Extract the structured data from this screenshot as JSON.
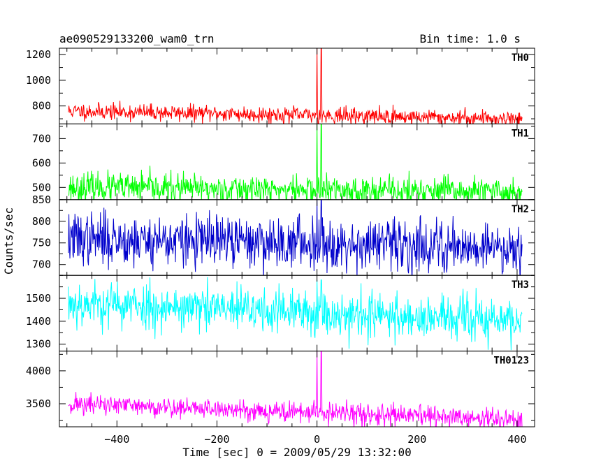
{
  "header": {
    "title": "ae090529133200_wam0_trn",
    "bin_time": "Bin time: 1.0 s"
  },
  "chart_data": {
    "type": "line",
    "title": "ae090529133200_wam0_trn",
    "bin_time": "Bin time: 1.0 s",
    "xlabel": "Time [sec] 0 = 2009/05/29 13:32:00",
    "ylabel": "Counts/sec",
    "xlim": [
      -515,
      435
    ],
    "x_ticks": [
      -400,
      -200,
      0,
      200,
      400
    ],
    "x_range": [
      -497,
      410
    ],
    "burst_x": [
      0,
      8
    ],
    "panels": [
      {
        "name": "TH0",
        "color": "#ff0000",
        "ylim": [
          660,
          1250
        ],
        "yticks": [
          800,
          1000,
          1200
        ],
        "baseline_start": 760,
        "baseline_end": 700,
        "noise": 32,
        "burst_peak": 1250,
        "seed": 11
      },
      {
        "name": "TH1",
        "color": "#00ff00",
        "ylim": [
          450,
          760
        ],
        "yticks": [
          500,
          600,
          700
        ],
        "baseline_start": 500,
        "baseline_end": 480,
        "noise": 30,
        "burst_peak": 760,
        "seed": 23
      },
      {
        "name": "TH2",
        "color": "#0000cc",
        "ylim": [
          675,
          850
        ],
        "yticks": [
          700,
          750,
          800,
          850
        ],
        "baseline_start": 760,
        "baseline_end": 740,
        "noise": 30,
        "burst_peak": 850,
        "seed": 37
      },
      {
        "name": "TH3",
        "color": "#00ffff",
        "ylim": [
          1270,
          1600
        ],
        "yticks": [
          1300,
          1400,
          1500
        ],
        "baseline_start": 1480,
        "baseline_end": 1400,
        "noise": 50,
        "burst_peak": 1580,
        "seed": 53
      },
      {
        "name": "TH0123",
        "color": "#ff00ff",
        "ylim": [
          3150,
          4300
        ],
        "yticks": [
          3500,
          4000
        ],
        "baseline_start": 3500,
        "baseline_end": 3250,
        "noise": 80,
        "burst_peak": 4300,
        "seed": 71
      }
    ]
  }
}
